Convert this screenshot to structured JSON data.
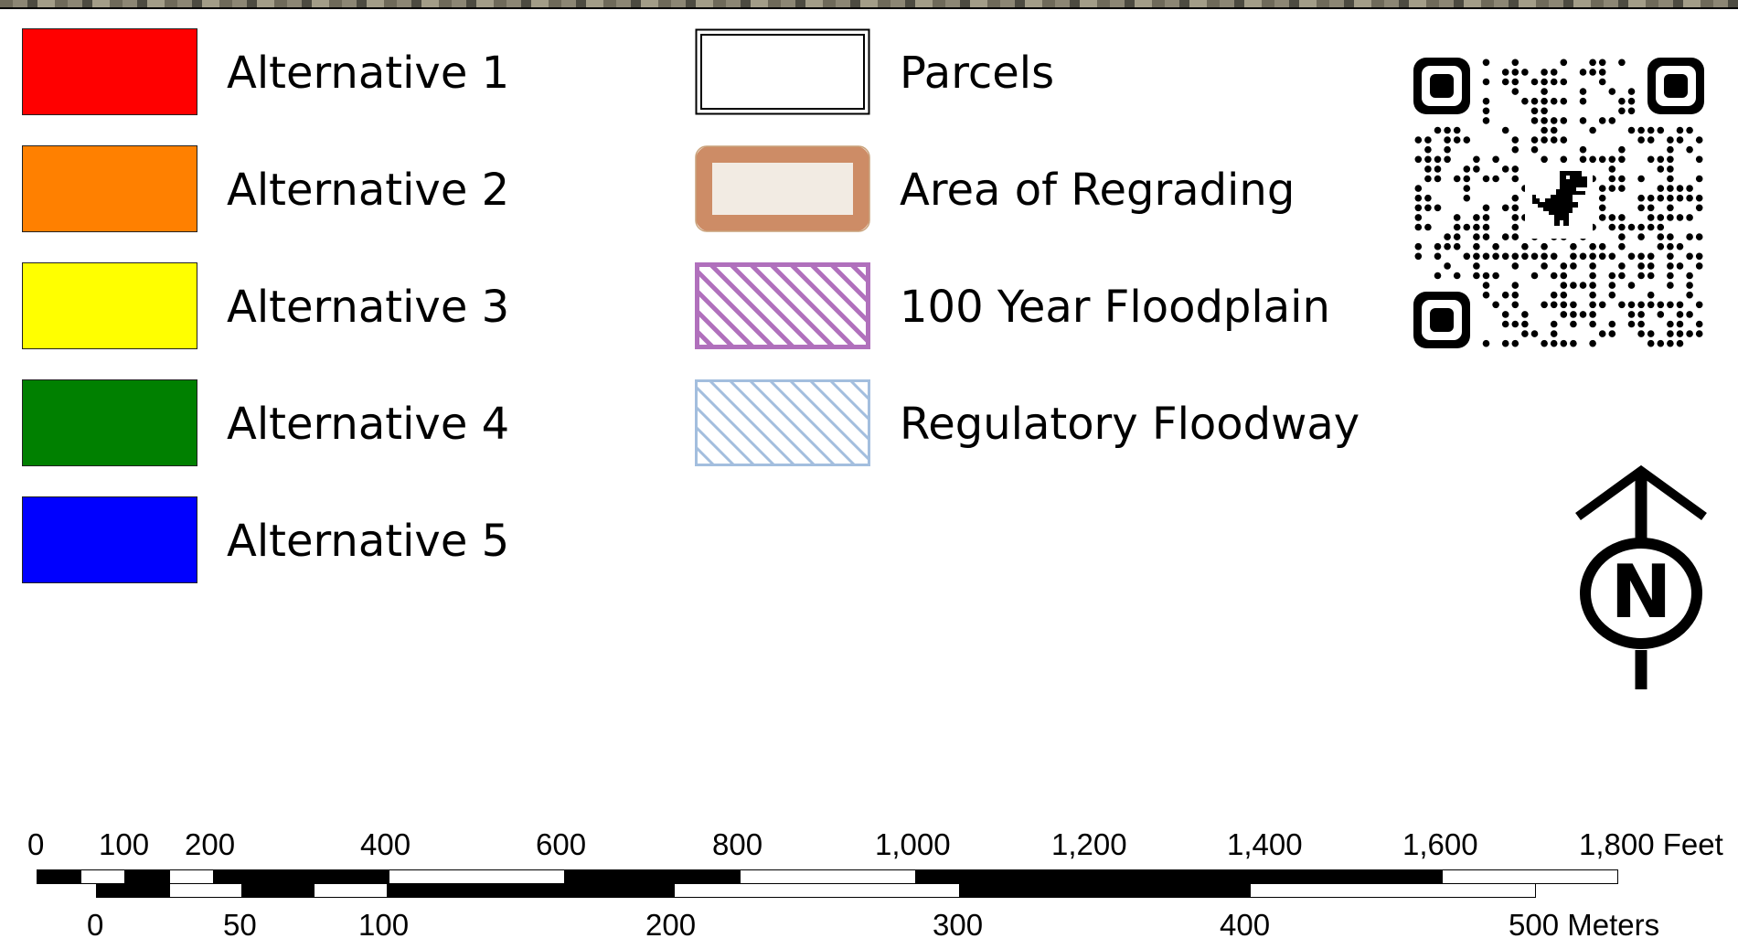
{
  "legend": {
    "alternatives": [
      {
        "label": "Alternative 1",
        "color": "#ff0000"
      },
      {
        "label": "Alternative 2",
        "color": "#ff8000"
      },
      {
        "label": "Alternative 3",
        "color": "#ffff00"
      },
      {
        "label": "Alternative 4",
        "color": "#008000"
      },
      {
        "label": "Alternative 5",
        "color": "#0000ff"
      }
    ],
    "features": [
      {
        "label": "Parcels",
        "symbol": "double-outline",
        "color": "#000000"
      },
      {
        "label": "Area of Regrading",
        "symbol": "thick-outline",
        "color": "#cd8c66",
        "fill": "#f2ebe3"
      },
      {
        "label": "100 Year Floodplain",
        "symbol": "hatch",
        "color": "#b070bc"
      },
      {
        "label": "Regulatory Floodway",
        "symbol": "hatch",
        "color": "#a3bede"
      }
    ]
  },
  "qr_code": {
    "icon": "dinosaur-icon"
  },
  "north_arrow": {
    "letter": "N"
  },
  "scale_bar": {
    "feet_ticks": [
      "0",
      "100",
      "200",
      "400",
      "600",
      "800",
      "1,000",
      "1,200",
      "1,400",
      "1,600",
      "1,800 Feet"
    ],
    "meters_ticks": [
      "0",
      "50",
      "100",
      "200",
      "300",
      "400",
      "500 Meters"
    ]
  }
}
